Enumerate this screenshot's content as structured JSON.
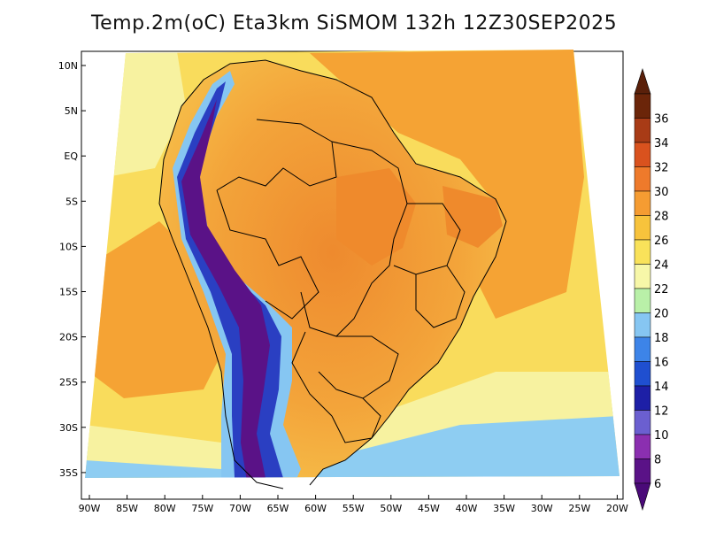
{
  "map": {
    "title": "Temp.2m(oC) Eta3km SiSMOM 132h 12Z30SEP2025",
    "variable": "Temp.2m",
    "units": "oC",
    "model": "Eta3km SiSMOM",
    "forecast_hour": "132h",
    "valid_time": "12Z30SEP2025",
    "lat_labels": [
      "10N",
      "5N",
      "EQ",
      "5S",
      "10S",
      "15S",
      "20S",
      "25S",
      "30S",
      "35S"
    ],
    "lon_labels": [
      "90W",
      "85W",
      "80W",
      "75W",
      "70W",
      "65W",
      "60W",
      "55W",
      "50W",
      "45W",
      "40W",
      "35W",
      "30W",
      "25W",
      "20W"
    ],
    "colorbar": {
      "labels": [
        "6",
        "8",
        "10",
        "12",
        "14",
        "16",
        "18",
        "20",
        "22",
        "24",
        "26",
        "28",
        "30",
        "32",
        "34",
        "36"
      ],
      "colors": [
        "#5a1287",
        "#8b2fb0",
        "#6b5fd0",
        "#1d1fa6",
        "#1f4fd0",
        "#3d84e8",
        "#86c6f2",
        "#b9f0a8",
        "#f7f7a8",
        "#f9e25a",
        "#f7c33c",
        "#f59c32",
        "#ee7a2b",
        "#d9521e",
        "#a83b16",
        "#6b2509"
      ],
      "low_arrow_color": "#4a0a78",
      "high_arrow_color": "#5a200a"
    },
    "field_colors": {
      "ocean_warm": "#f5a334",
      "ocean_mild": "#f9dc5c",
      "ocean_cool": "#f7f2a0",
      "ocean_cold": "#8ecdf2",
      "land_hot": "#ef8a2c",
      "land_warm": "#f6b84a",
      "andes_high": "#5a1287",
      "andes_mid": "#2a3fc2",
      "andes_low": "#86c6f2"
    }
  }
}
